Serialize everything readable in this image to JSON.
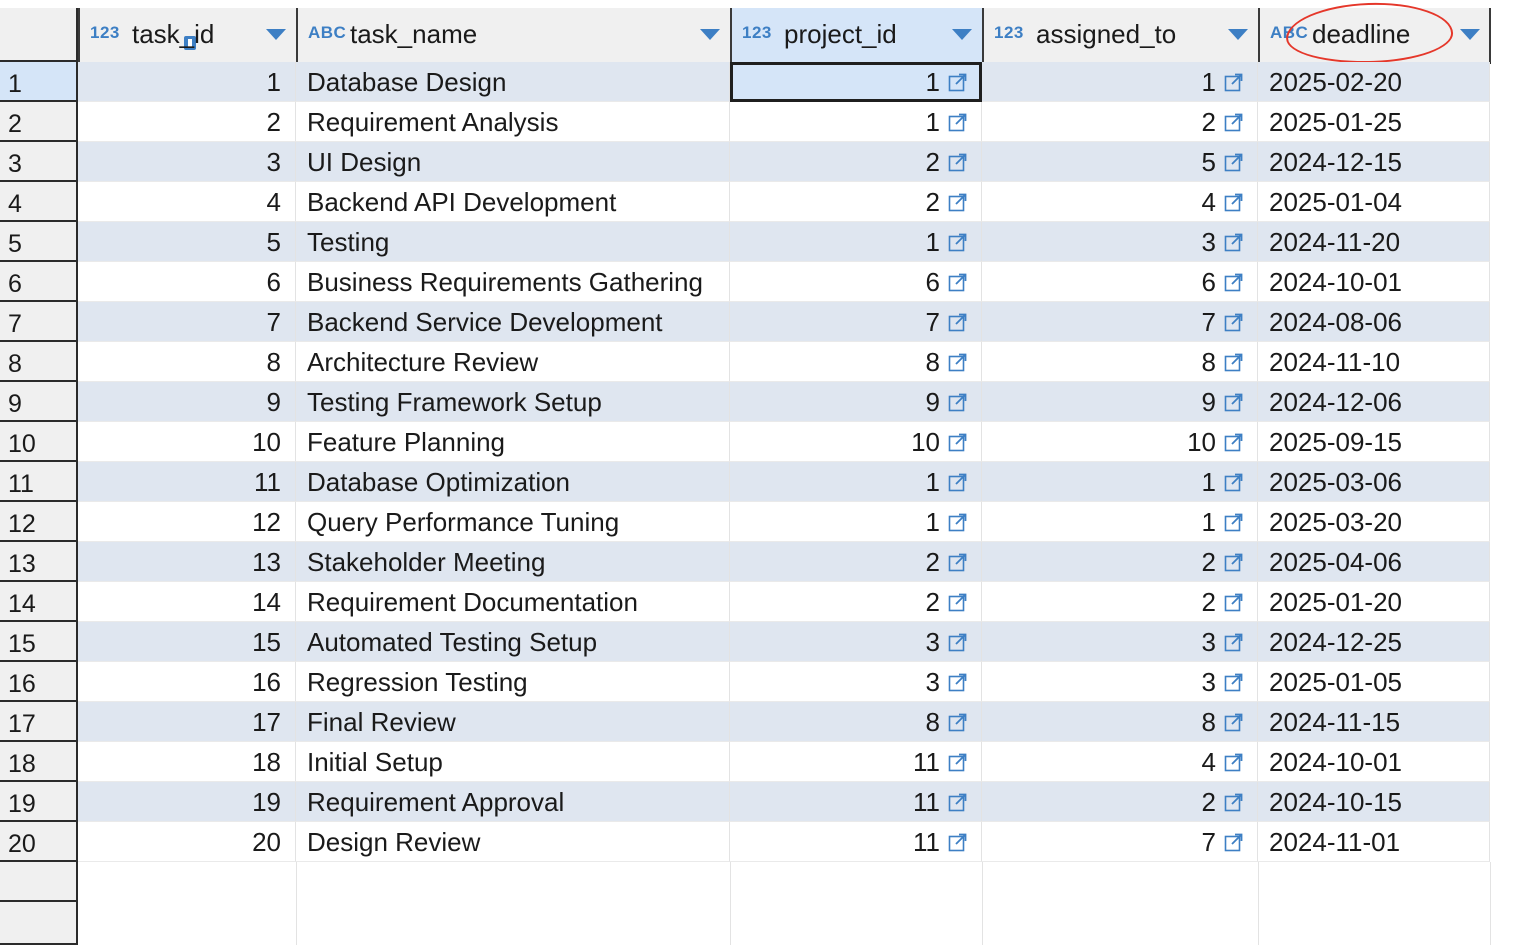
{
  "columns": [
    {
      "type": "123",
      "name": "task_id"
    },
    {
      "type": "ABC",
      "name": "task_name"
    },
    {
      "type": "123",
      "name": "project_id"
    },
    {
      "type": "123",
      "name": "assigned_to"
    },
    {
      "type": "ABC",
      "name": "deadline"
    }
  ],
  "rows": [
    {
      "n": "1",
      "task_id": "1",
      "task_name": "Database Design",
      "project_id": "1",
      "assigned_to": "1",
      "deadline": "2025-02-20"
    },
    {
      "n": "2",
      "task_id": "2",
      "task_name": "Requirement Analysis",
      "project_id": "1",
      "assigned_to": "2",
      "deadline": "2025-01-25"
    },
    {
      "n": "3",
      "task_id": "3",
      "task_name": "UI Design",
      "project_id": "2",
      "assigned_to": "5",
      "deadline": "2024-12-15"
    },
    {
      "n": "4",
      "task_id": "4",
      "task_name": "Backend API Development",
      "project_id": "2",
      "assigned_to": "4",
      "deadline": "2025-01-04"
    },
    {
      "n": "5",
      "task_id": "5",
      "task_name": "Testing",
      "project_id": "1",
      "assigned_to": "3",
      "deadline": "2024-11-20"
    },
    {
      "n": "6",
      "task_id": "6",
      "task_name": "Business Requirements Gathering",
      "project_id": "6",
      "assigned_to": "6",
      "deadline": "2024-10-01"
    },
    {
      "n": "7",
      "task_id": "7",
      "task_name": "Backend Service Development",
      "project_id": "7",
      "assigned_to": "7",
      "deadline": "2024-08-06"
    },
    {
      "n": "8",
      "task_id": "8",
      "task_name": "Architecture Review",
      "project_id": "8",
      "assigned_to": "8",
      "deadline": "2024-11-10"
    },
    {
      "n": "9",
      "task_id": "9",
      "task_name": "Testing Framework Setup",
      "project_id": "9",
      "assigned_to": "9",
      "deadline": "2024-12-06"
    },
    {
      "n": "10",
      "task_id": "10",
      "task_name": "Feature Planning",
      "project_id": "10",
      "assigned_to": "10",
      "deadline": "2025-09-15"
    },
    {
      "n": "11",
      "task_id": "11",
      "task_name": "Database Optimization",
      "project_id": "1",
      "assigned_to": "1",
      "deadline": "2025-03-06"
    },
    {
      "n": "12",
      "task_id": "12",
      "task_name": "Query Performance Tuning",
      "project_id": "1",
      "assigned_to": "1",
      "deadline": "2025-03-20"
    },
    {
      "n": "13",
      "task_id": "13",
      "task_name": "Stakeholder Meeting",
      "project_id": "2",
      "assigned_to": "2",
      "deadline": "2025-04-06"
    },
    {
      "n": "14",
      "task_id": "14",
      "task_name": "Requirement Documentation",
      "project_id": "2",
      "assigned_to": "2",
      "deadline": "2025-01-20"
    },
    {
      "n": "15",
      "task_id": "15",
      "task_name": "Automated Testing Setup",
      "project_id": "3",
      "assigned_to": "3",
      "deadline": "2024-12-25"
    },
    {
      "n": "16",
      "task_id": "16",
      "task_name": "Regression Testing",
      "project_id": "3",
      "assigned_to": "3",
      "deadline": "2025-01-05"
    },
    {
      "n": "17",
      "task_id": "17",
      "task_name": "Final Review",
      "project_id": "8",
      "assigned_to": "8",
      "deadline": "2024-11-15"
    },
    {
      "n": "18",
      "task_id": "18",
      "task_name": "Initial Setup",
      "project_id": "11",
      "assigned_to": "4",
      "deadline": "2024-10-01"
    },
    {
      "n": "19",
      "task_id": "19",
      "task_name": "Requirement Approval",
      "project_id": "11",
      "assigned_to": "2",
      "deadline": "2024-10-15"
    },
    {
      "n": "20",
      "task_id": "20",
      "task_name": "Design Review",
      "project_id": "11",
      "assigned_to": "7",
      "deadline": "2024-11-01"
    }
  ],
  "colors": {
    "accent": "#3d7fc4",
    "alt_row": "#dfe6f0",
    "selection": "#d5e5f8",
    "annotation": "#e5372a"
  },
  "icons": {
    "header_sort": "chevron-down-icon",
    "fk_link": "external-link-icon",
    "primary_key": "key-icon"
  }
}
